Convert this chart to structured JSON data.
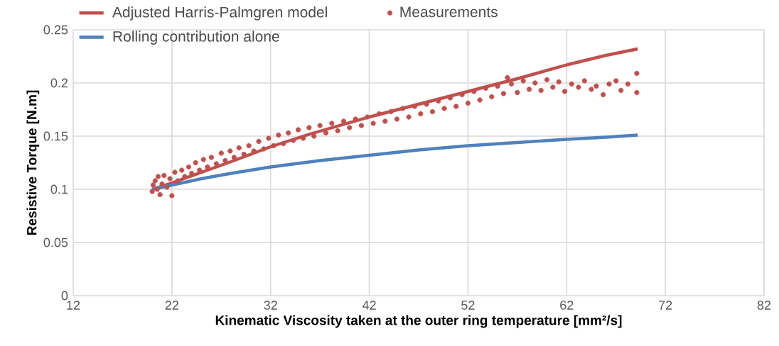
{
  "chart_data": {
    "type": "line",
    "xlabel": "Kinematic Viscosity taken at the outer ring temperature [mm²/s]",
    "ylabel": "Resistive Torque [N.m]",
    "xlim": [
      12,
      82
    ],
    "xticks": [
      12,
      22,
      32,
      42,
      52,
      62,
      72,
      82
    ],
    "ylim": [
      0,
      0.25
    ],
    "yticks": [
      0,
      0.05,
      0.1,
      0.15,
      0.2,
      0.25
    ],
    "grid": true,
    "legend": "top left",
    "series": [
      {
        "name": "Adjusted Harris-Palmgren model",
        "color": "#c0504d",
        "marker": "none",
        "x": [
          20,
          22,
          25,
          28,
          32,
          36,
          42,
          47,
          52,
          57,
          62,
          66,
          69.2
        ],
        "values": [
          0.1,
          0.106,
          0.116,
          0.126,
          0.14,
          0.152,
          0.168,
          0.18,
          0.192,
          0.204,
          0.217,
          0.226,
          0.232
        ]
      },
      {
        "name": "Measurements",
        "type": "scatter",
        "color": "#c0504d",
        "marker": "circle",
        "x": [
          20,
          20.1,
          20.3,
          20.5,
          20.6,
          20.8,
          21,
          21.2,
          21.5,
          21.8,
          22,
          22.3,
          22.6,
          23,
          23.3,
          23.7,
          24,
          24.4,
          24.8,
          25.2,
          25.6,
          26,
          26.5,
          27,
          27.4,
          27.9,
          28.3,
          28.8,
          29.3,
          29.8,
          30.3,
          30.8,
          31.3,
          31.8,
          32.3,
          32.8,
          33.3,
          33.8,
          34.3,
          34.8,
          35.3,
          35.9,
          36.4,
          37,
          37.6,
          38.2,
          38.8,
          39.4,
          40,
          40.6,
          41.2,
          41.8,
          42.4,
          43,
          43.6,
          44.2,
          44.8,
          45.4,
          46,
          46.6,
          47.2,
          47.8,
          48.4,
          49,
          49.6,
          50.2,
          50.8,
          51.4,
          52,
          52.6,
          53.2,
          53.8,
          54.4,
          55,
          55.6,
          56,
          56.4,
          57,
          57.6,
          58.2,
          58.8,
          59.4,
          60,
          60.6,
          61.2,
          61.8,
          62.5,
          63.2,
          63.8,
          64.5,
          65,
          65.7,
          66.3,
          67,
          67.5,
          68.2,
          69.1,
          69.1
        ],
        "values": [
          0.098,
          0.104,
          0.108,
          0.1,
          0.112,
          0.095,
          0.105,
          0.113,
          0.102,
          0.11,
          0.094,
          0.116,
          0.108,
          0.118,
          0.112,
          0.121,
          0.115,
          0.125,
          0.118,
          0.128,
          0.121,
          0.13,
          0.124,
          0.134,
          0.127,
          0.136,
          0.13,
          0.139,
          0.133,
          0.141,
          0.136,
          0.145,
          0.138,
          0.148,
          0.141,
          0.151,
          0.143,
          0.153,
          0.146,
          0.156,
          0.148,
          0.158,
          0.15,
          0.16,
          0.153,
          0.162,
          0.155,
          0.164,
          0.158,
          0.166,
          0.16,
          0.168,
          0.162,
          0.171,
          0.164,
          0.173,
          0.166,
          0.176,
          0.168,
          0.178,
          0.171,
          0.18,
          0.173,
          0.183,
          0.176,
          0.186,
          0.178,
          0.189,
          0.181,
          0.192,
          0.184,
          0.195,
          0.187,
          0.197,
          0.19,
          0.205,
          0.199,
          0.191,
          0.202,
          0.194,
          0.2,
          0.193,
          0.203,
          0.196,
          0.201,
          0.192,
          0.199,
          0.196,
          0.202,
          0.194,
          0.197,
          0.189,
          0.199,
          0.202,
          0.193,
          0.199,
          0.209,
          0.191
        ]
      },
      {
        "name": "Rolling contribution alone",
        "color": "#4f81bd",
        "marker": "none",
        "x": [
          20,
          22,
          25,
          28,
          32,
          37,
          42,
          47,
          52,
          57,
          62,
          66,
          69.2
        ],
        "values": [
          0.1,
          0.104,
          0.11,
          0.115,
          0.121,
          0.127,
          0.132,
          0.137,
          0.141,
          0.144,
          0.147,
          0.149,
          0.151
        ]
      }
    ]
  }
}
